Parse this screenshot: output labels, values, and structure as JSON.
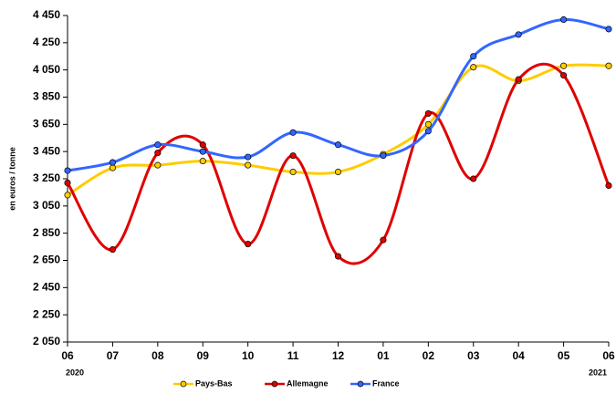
{
  "chart_data": {
    "type": "line",
    "y_label": "en euros / tonne",
    "categories": [
      "06",
      "07",
      "08",
      "09",
      "10",
      "11",
      "12",
      "01",
      "02",
      "03",
      "04",
      "05",
      "06"
    ],
    "x_sublabels": [
      "2020",
      null,
      null,
      null,
      null,
      null,
      null,
      null,
      null,
      null,
      null,
      null,
      "2021"
    ],
    "series": [
      {
        "name": "Pays-Bas",
        "color": "#ffcc00",
        "values": [
          3130,
          3330,
          3350,
          3380,
          3350,
          3300,
          3300,
          3430,
          3650,
          4070,
          3970,
          4080,
          4080
        ]
      },
      {
        "name": "Allemagne",
        "color": "#e00000",
        "values": [
          3220,
          2730,
          3440,
          3500,
          2770,
          3420,
          2680,
          2800,
          3730,
          3250,
          3980,
          4010,
          3200
        ]
      },
      {
        "name": "France",
        "color": "#3366ff",
        "values": [
          3310,
          3370,
          3500,
          3450,
          3410,
          3590,
          3500,
          3420,
          3600,
          4150,
          4310,
          4420,
          4350
        ]
      }
    ],
    "ylim": [
      2050,
      4450
    ],
    "yticks": [
      {
        "value": 2050,
        "label": "2 050"
      },
      {
        "value": 2250,
        "label": "2 250"
      },
      {
        "value": 2450,
        "label": "2 450"
      },
      {
        "value": 2650,
        "label": "2 650"
      },
      {
        "value": 2850,
        "label": "2 850"
      },
      {
        "value": 3050,
        "label": "3 050"
      },
      {
        "value": 3250,
        "label": "3 250"
      },
      {
        "value": 3450,
        "label": "3 450"
      },
      {
        "value": 3650,
        "label": "3 650"
      },
      {
        "value": 3850,
        "label": "3 850"
      },
      {
        "value": 4050,
        "label": "4 050"
      },
      {
        "value": 4250,
        "label": "4 250"
      },
      {
        "value": 4450,
        "label": "4 450"
      }
    ],
    "grid": false,
    "legend": "bottom"
  }
}
